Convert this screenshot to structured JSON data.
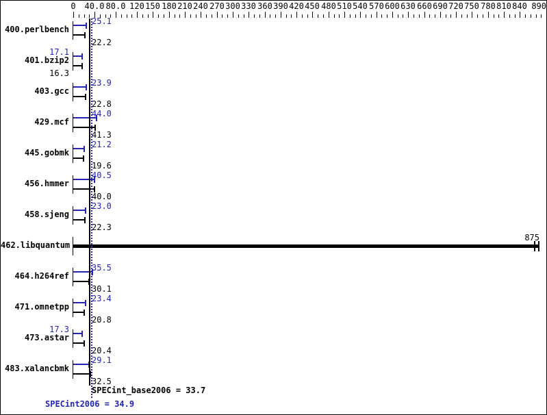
{
  "chart_data": {
    "type": "bar",
    "orientation": "horizontal",
    "title": "",
    "xlim": [
      0,
      890
    ],
    "grid": false,
    "legend": "none",
    "axis": {
      "position": "top",
      "minor_tick_step": 10,
      "labels": [
        {
          "v": 0,
          "text": "0"
        },
        {
          "v": 40,
          "text": "40.0"
        },
        {
          "v": 80,
          "text": "80.0"
        },
        {
          "v": 120,
          "text": "120"
        },
        {
          "v": 150,
          "text": "150"
        },
        {
          "v": 180,
          "text": "180"
        },
        {
          "v": 210,
          "text": "210"
        },
        {
          "v": 240,
          "text": "240"
        },
        {
          "v": 270,
          "text": "270"
        },
        {
          "v": 300,
          "text": "300"
        },
        {
          "v": 330,
          "text": "330"
        },
        {
          "v": 360,
          "text": "360"
        },
        {
          "v": 390,
          "text": "390"
        },
        {
          "v": 420,
          "text": "420"
        },
        {
          "v": 450,
          "text": "450"
        },
        {
          "v": 480,
          "text": "480"
        },
        {
          "v": 510,
          "text": "510"
        },
        {
          "v": 540,
          "text": "540"
        },
        {
          "v": 570,
          "text": "570"
        },
        {
          "v": 600,
          "text": "600"
        },
        {
          "v": 630,
          "text": "630"
        },
        {
          "v": 660,
          "text": "660"
        },
        {
          "v": 690,
          "text": "690"
        },
        {
          "v": 720,
          "text": "720"
        },
        {
          "v": 750,
          "text": "750"
        },
        {
          "v": 780,
          "text": "780"
        },
        {
          "v": 810,
          "text": "810"
        },
        {
          "v": 840,
          "text": "840"
        },
        {
          "v": 890,
          "text": "890"
        }
      ]
    },
    "series_meta": {
      "peak": {
        "name": "SPECint2006 (peak)",
        "color": "#2323b4"
      },
      "base": {
        "name": "SPECint_base2006 (base)",
        "color": "#000000"
      }
    },
    "rows": [
      {
        "label": "400.perlbench",
        "peak": 25.1,
        "peak_text": "25.1",
        "peak_side": "right",
        "base": 22.2,
        "base_text": "22.2",
        "base_side": "right",
        "merged": false
      },
      {
        "label": "401.bzip2",
        "peak": 17.1,
        "peak_text": "17.1",
        "peak_side": "left",
        "base": 16.3,
        "base_text": "16.3",
        "base_side": "left",
        "merged": false
      },
      {
        "label": "403.gcc",
        "peak": 23.9,
        "peak_text": "23.9",
        "peak_side": "right",
        "base": 22.8,
        "base_text": "22.8",
        "base_side": "right",
        "merged": false
      },
      {
        "label": "429.mcf",
        "peak": 44.0,
        "peak_text": "44.0",
        "peak_side": "right",
        "base": 41.3,
        "base_text": "41.3",
        "base_side": "right",
        "merged": false
      },
      {
        "label": "445.gobmk",
        "peak": 21.2,
        "peak_text": "21.2",
        "peak_side": "right",
        "base": 19.6,
        "base_text": "19.6",
        "base_side": "right",
        "merged": false
      },
      {
        "label": "456.hmmer",
        "peak": 40.5,
        "peak_text": "40.5",
        "peak_side": "right",
        "base": 40.0,
        "base_text": "40.0",
        "base_side": "right",
        "merged": false
      },
      {
        "label": "458.sjeng",
        "peak": 23.0,
        "peak_text": "23.0",
        "peak_side": "right",
        "base": 22.3,
        "base_text": "22.3",
        "base_side": "right",
        "merged": false
      },
      {
        "label": "462.libquantum",
        "peak": null,
        "peak_text": "",
        "peak_side": "none",
        "base": 875,
        "base_text": "875",
        "base_side": "end",
        "merged": true
      },
      {
        "label": "464.h264ref",
        "peak": 35.5,
        "peak_text": "35.5",
        "peak_side": "right",
        "base": 30.1,
        "base_text": "30.1",
        "base_side": "right",
        "merged": false
      },
      {
        "label": "471.omnetpp",
        "peak": 23.4,
        "peak_text": "23.4",
        "peak_side": "right",
        "base": 20.8,
        "base_text": "20.8",
        "base_side": "right",
        "merged": false
      },
      {
        "label": "473.astar",
        "peak": 17.3,
        "peak_text": "17.3",
        "peak_side": "left",
        "base": 20.4,
        "base_text": "20.4",
        "base_side": "right",
        "merged": false
      },
      {
        "label": "483.xalancbmk",
        "peak": 29.1,
        "peak_text": "29.1",
        "peak_side": "right",
        "base": 32.5,
        "base_text": "32.5",
        "base_side": "right",
        "merged": false
      }
    ],
    "reference_lines": [
      {
        "value": 33.7,
        "style": "solid",
        "color": "#000000",
        "label": "SPECint_base2006 = 33.7"
      },
      {
        "value": 34.9,
        "style": "dotted",
        "color": "#2323b4",
        "label": "SPECint2006 = 34.9"
      }
    ]
  },
  "summary": {
    "base_line": "SPECint_base2006 = 33.7",
    "peak_line": "SPECint2006 = 34.9"
  },
  "colors": {
    "peak_blue": "#2323b4",
    "base_black": "#000000",
    "background": "#ffffff",
    "border": "#000000"
  }
}
